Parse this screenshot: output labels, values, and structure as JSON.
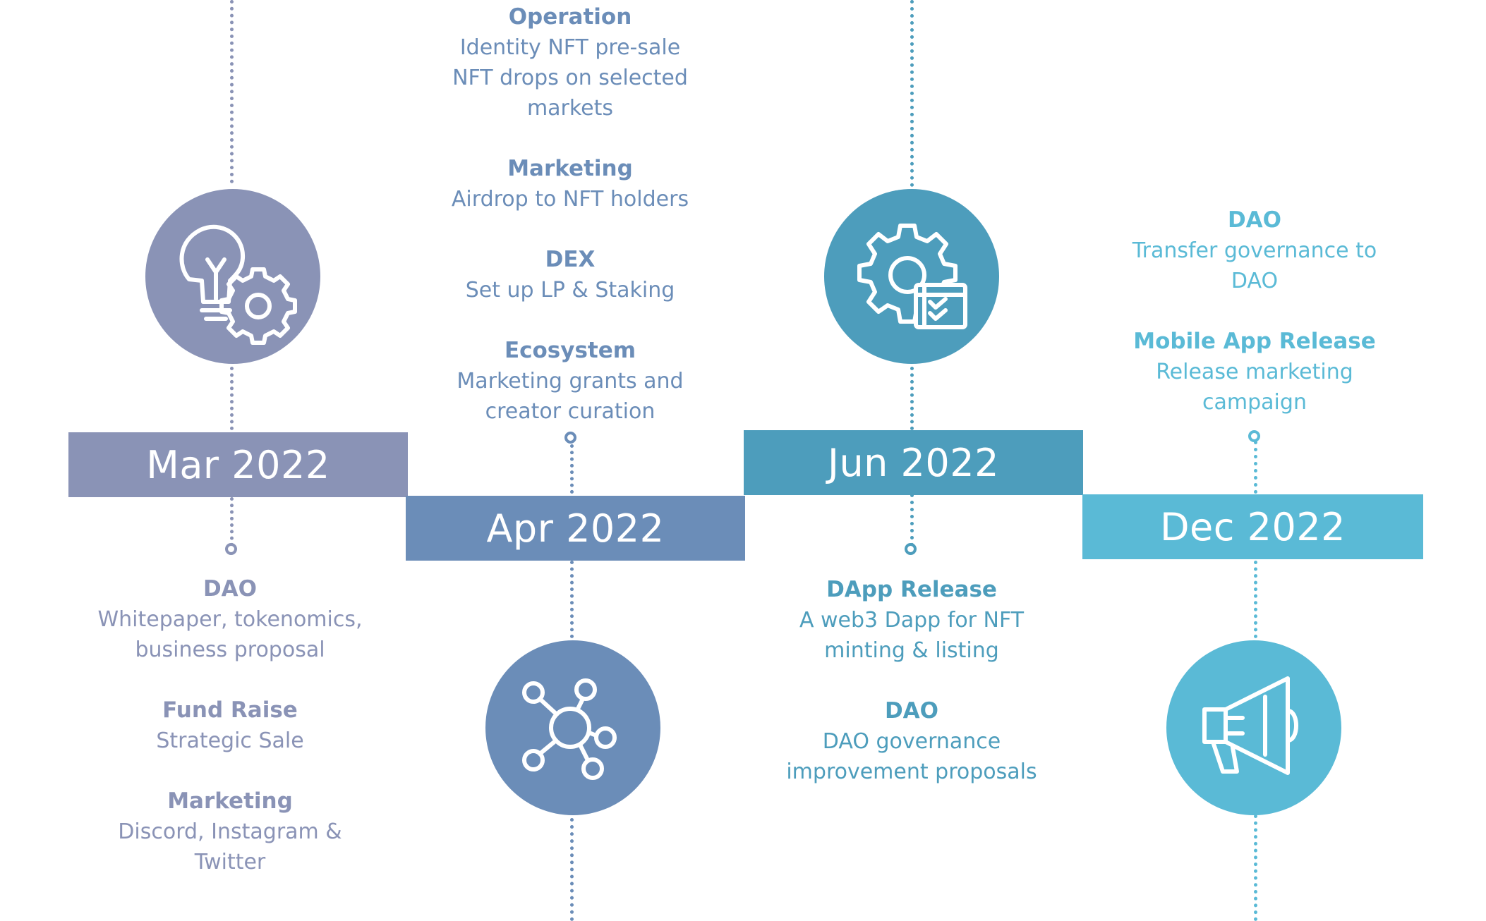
{
  "colors": {
    "mar": "#8a93b6",
    "apr": "#6b8db8",
    "jun": "#4d9dbc",
    "dec": "#5abad6"
  },
  "milestones": [
    {
      "label": "Mar 2022",
      "icon": "lightbulb-gear-icon",
      "groups": [
        {
          "title": "DAO",
          "text": "Whitepaper, tokenomics,\nbusiness proposal"
        },
        {
          "title": "Fund Raise",
          "text": "Strategic Sale"
        },
        {
          "title": "Marketing",
          "text": "Discord, Instagram &\nTwitter"
        }
      ]
    },
    {
      "label": "Apr 2022",
      "icon": "network-icon",
      "groups": [
        {
          "title": "Operation",
          "text": "Identity NFT pre-sale\nNFT drops on selected\nmarkets"
        },
        {
          "title": "Marketing",
          "text": "Airdrop to NFT holders"
        },
        {
          "title": "DEX",
          "text": "Set up LP & Staking"
        },
        {
          "title": "Ecosystem",
          "text": "Marketing grants and\ncreator curation"
        }
      ]
    },
    {
      "label": "Jun 2022",
      "icon": "gear-checklist-icon",
      "groups": [
        {
          "title": "DApp Release",
          "text": "A web3 Dapp for NFT\nminting & listing"
        },
        {
          "title": "DAO",
          "text": "DAO governance\nimprovement proposals"
        }
      ]
    },
    {
      "label": "Dec 2022",
      "icon": "megaphone-icon",
      "groups": [
        {
          "title": "DAO",
          "text": "Transfer governance to\nDAO"
        },
        {
          "title": "Mobile App Release",
          "text": "Release marketing\ncampaign"
        }
      ]
    }
  ]
}
